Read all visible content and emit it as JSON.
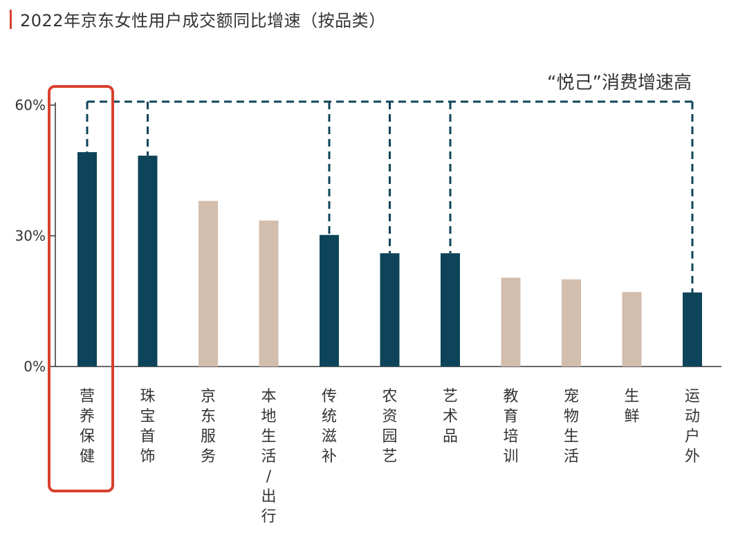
{
  "colors": {
    "highlight_bar": "#0e4459",
    "other_bar": "#d3bdac",
    "accent": "#d9402f",
    "title_accent": "#d9402f",
    "axis": "#333333",
    "text": "#333333"
  },
  "chart_data": {
    "type": "bar",
    "title": "2022年京东女性用户成交额同比增速（按品类）",
    "annotation": "“悦己”消费增速高",
    "xlabel": "",
    "ylabel": "",
    "ylim": [
      0,
      60
    ],
    "yticks": [
      "0%",
      "30%",
      "60%"
    ],
    "ytick_values": [
      0,
      30,
      60
    ],
    "categories": [
      "营养保健",
      "珠宝首饰",
      "京东服务",
      "本地生活/出行",
      "传统滋补",
      "农资园艺",
      "艺术品",
      "教育培训",
      "宠物生活",
      "生鲜",
      "运动户外"
    ],
    "values": [
      49.2,
      48.4,
      38.0,
      33.5,
      30.2,
      26.0,
      26.0,
      20.4,
      20.0,
      17.1,
      17.0
    ],
    "highlighted": [
      true,
      true,
      false,
      false,
      true,
      true,
      true,
      false,
      false,
      false,
      true
    ],
    "boxed_category": "营养保健"
  }
}
